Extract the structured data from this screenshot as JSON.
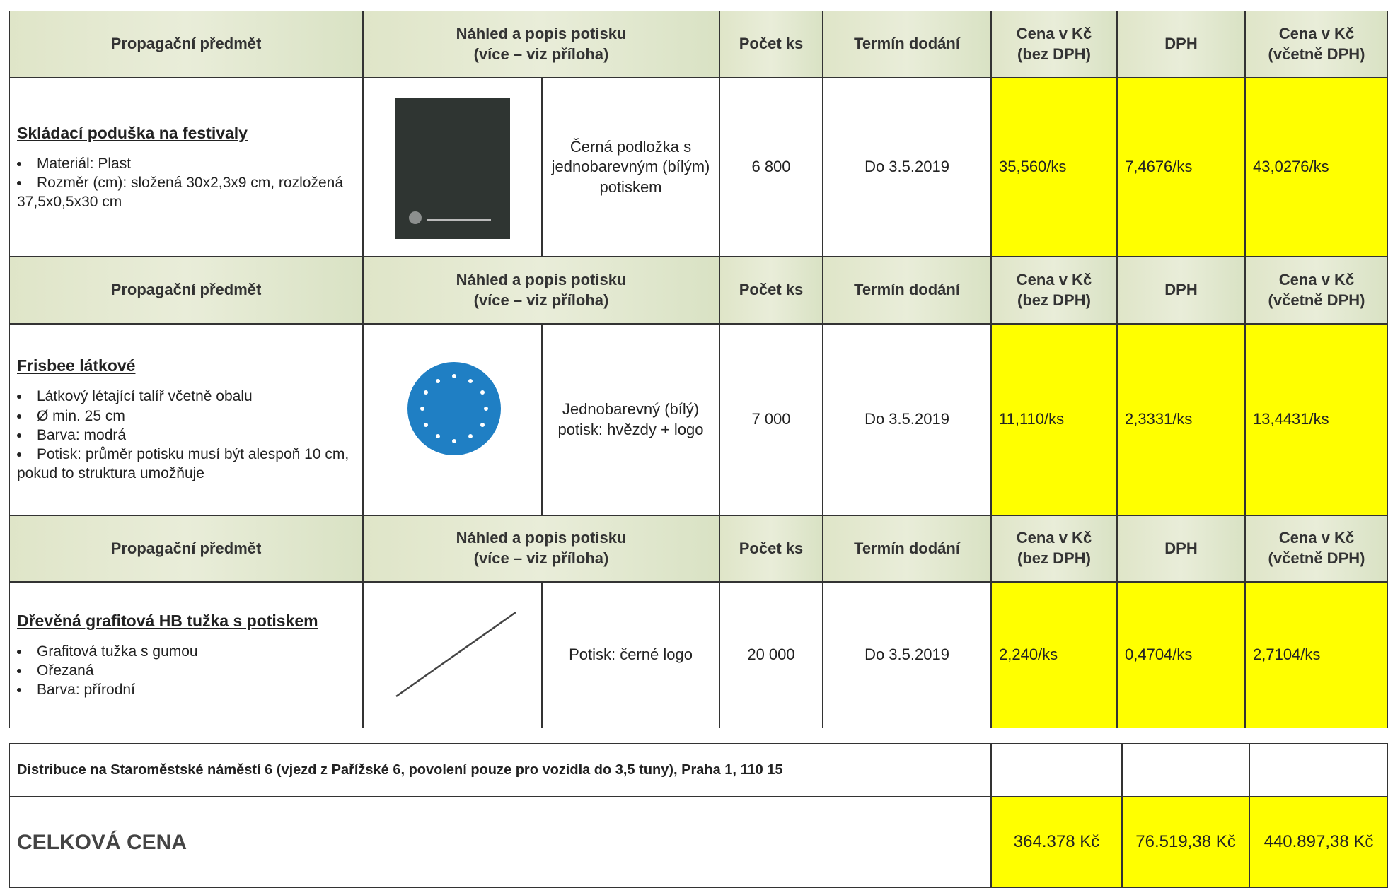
{
  "header": [
    [
      "Propagační předmět"
    ],
    [
      "Náhled a popis potisku",
      "(více – viz příloha)"
    ],
    [
      "Počet ks"
    ],
    [
      "Termín dodání"
    ],
    [
      "Cena v Kč",
      "(bez DPH)"
    ],
    [
      "DPH"
    ],
    [
      "Cena v Kč",
      "(včetně DPH)"
    ]
  ],
  "items": [
    {
      "name": "Skládací poduška na festivaly",
      "bullets": [
        "Materiál: Plast",
        "Rozměr (cm): složená 30x2,3x9 cm, rozložená 37,5x0,5x30 cm"
      ],
      "description": "Černá podložka s jednobarevným (bílým) potiskem",
      "quantity": "6 800",
      "delivery": "Do 3.5.2019",
      "price": "35,560/ks",
      "vat": "7,4676/ks",
      "total": "43,0276/ks"
    },
    {
      "name": "Frisbee látkové",
      "bullets": [
        "Látkový létající talíř včetně obalu",
        "Ø min. 25 cm",
        "Barva: modrá",
        "Potisk: průměr potisku musí být alespoň 10 cm, pokud to struktura umožňuje"
      ],
      "description": "Jednobarevný (bílý) potisk: hvězdy + logo",
      "quantity": "7 000",
      "delivery": "Do 3.5.2019",
      "price": "11,110/ks",
      "vat": "2,3331/ks",
      "total": "13,4431/ks"
    },
    {
      "name": "Dřevěná grafitová HB tužka s potiskem",
      "bullets": [
        "Grafitová tužka s gumou",
        "Ořezaná",
        "Barva: přírodní"
      ],
      "description": "Potisk: černé logo",
      "quantity": "20 000",
      "delivery": "Do 3.5.2019",
      "price": "2,240/ks",
      "vat": "0,4704/ks",
      "total": "2,7104/ks"
    }
  ],
  "summary": {
    "distribution": "Distribuce na Staroměstské náměstí 6 (vjezd z Pařížské 6, povolení pouze pro vozidla do 3,5 tuny), Praha 1, 110 15",
    "total_label": "CELKOVÁ CENA",
    "total_price": "364.378 Kč",
    "total_vat": "76.519,38 Kč",
    "total_with_vat": "440.897,38 Kč"
  }
}
